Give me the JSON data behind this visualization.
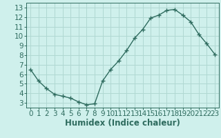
{
  "x": [
    0,
    1,
    2,
    3,
    4,
    5,
    6,
    7,
    8,
    9,
    10,
    11,
    12,
    13,
    14,
    15,
    16,
    17,
    18,
    19,
    20,
    21,
    22,
    23
  ],
  "y": [
    6.5,
    5.3,
    4.5,
    3.9,
    3.7,
    3.5,
    3.1,
    2.8,
    2.9,
    5.3,
    6.5,
    7.4,
    8.5,
    9.8,
    10.7,
    11.9,
    12.2,
    12.7,
    12.8,
    12.2,
    11.5,
    10.2,
    9.2,
    8.1
  ],
  "line_color": "#2e6b5e",
  "marker": "+",
  "marker_size": 4,
  "marker_linewidth": 1.0,
  "line_width": 1.0,
  "bg_color": "#cff0ec",
  "grid_color": "#b0d8d2",
  "xlabel": "Humidex (Indice chaleur)",
  "xlim": [
    -0.5,
    23.5
  ],
  "ylim": [
    2.5,
    13.5
  ],
  "yticks": [
    3,
    4,
    5,
    6,
    7,
    8,
    9,
    10,
    11,
    12,
    13
  ],
  "xticks": [
    0,
    1,
    2,
    3,
    4,
    5,
    6,
    7,
    8,
    9,
    10,
    11,
    12,
    13,
    14,
    15,
    16,
    17,
    18,
    19,
    20,
    21,
    22,
    23
  ],
  "tick_fontsize": 7.5,
  "xlabel_fontsize": 8.5
}
